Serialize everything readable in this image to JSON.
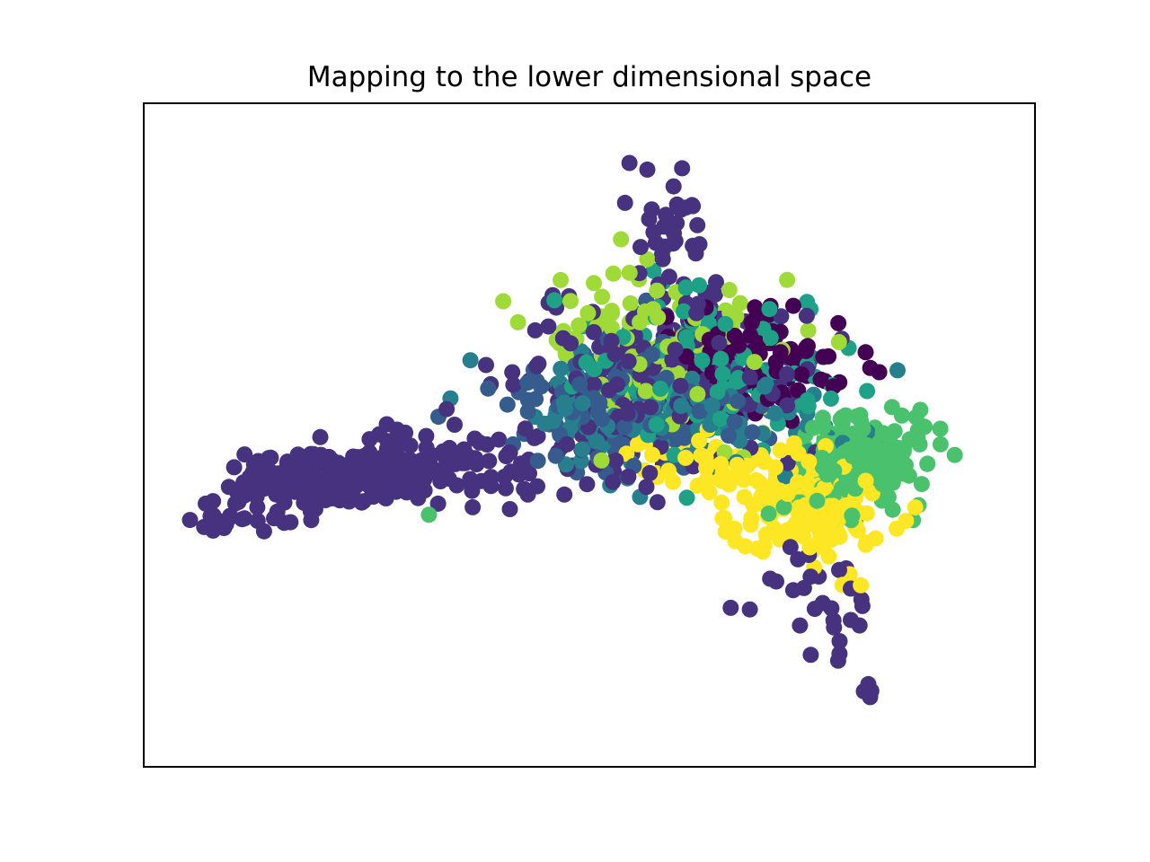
{
  "chart_data": {
    "type": "scatter",
    "title": "Mapping to the lower dimensional space",
    "xlabel": "",
    "ylabel": "",
    "axis_ticks_visible": false,
    "grid": false,
    "legend": "none",
    "marker": "circle",
    "colormap": "viridis",
    "class_colors": [
      "#440154",
      "#46327e",
      "#365c8d",
      "#277f8e",
      "#1fa187",
      "#4ac16d",
      "#a0da39",
      "#fde725"
    ],
    "xlim": [
      0,
      100
    ],
    "ylim": [
      0,
      100
    ],
    "seed": 7,
    "clusters": [
      {
        "class": 1,
        "n": 150,
        "cx": 19,
        "cy": 43,
        "sx": 4.5,
        "sy": 2.2
      },
      {
        "class": 1,
        "n": 150,
        "cx": 31,
        "cy": 45,
        "sx": 7,
        "sy": 2.8
      },
      {
        "class": 1,
        "n": 20,
        "cx": 10,
        "cy": 38,
        "sx": 2.2,
        "sy": 1.6
      },
      {
        "class": 1,
        "n": 220,
        "cx": 58,
        "cy": 58,
        "sx": 8,
        "sy": 7
      },
      {
        "class": 1,
        "n": 30,
        "cx": 59,
        "cy": 79,
        "sx": 2.5,
        "sy": 5
      },
      {
        "class": 1,
        "n": 30,
        "cx": 75,
        "cy": 25,
        "sx": 4,
        "sy": 5
      },
      {
        "class": 1,
        "n": 3,
        "cx": 82,
        "cy": 11,
        "sx": 1.2,
        "sy": 0.8
      },
      {
        "class": 0,
        "n": 90,
        "cx": 69,
        "cy": 61,
        "sx": 5.5,
        "sy": 4
      },
      {
        "class": 2,
        "n": 140,
        "cx": 56,
        "cy": 55,
        "sx": 8,
        "sy": 5
      },
      {
        "class": 3,
        "n": 140,
        "cx": 60,
        "cy": 53,
        "sx": 9,
        "sy": 5
      },
      {
        "class": 4,
        "n": 140,
        "cx": 62,
        "cy": 60,
        "sx": 7,
        "sy": 6
      },
      {
        "class": 5,
        "n": 210,
        "cx": 80,
        "cy": 46,
        "sx": 3.5,
        "sy": 3.2
      },
      {
        "class": 5,
        "n": 5,
        "cx": 88,
        "cy": 50,
        "sx": 2,
        "sy": 1.5
      },
      {
        "class": 6,
        "n": 120,
        "cx": 57,
        "cy": 63,
        "sx": 7,
        "sy": 6
      },
      {
        "class": 7,
        "n": 200,
        "cx": 74,
        "cy": 40,
        "sx": 5,
        "sy": 4
      },
      {
        "class": 7,
        "n": 40,
        "cx": 62,
        "cy": 48,
        "sx": 5,
        "sy": 3
      }
    ],
    "extra_points": [
      {
        "class": 1,
        "x": 9,
        "y": 36
      },
      {
        "class": 1,
        "x": 13.5,
        "y": 35.5
      },
      {
        "class": 1,
        "x": 54.5,
        "y": 91
      },
      {
        "class": 1,
        "x": 56.5,
        "y": 90
      },
      {
        "class": 1,
        "x": 54,
        "y": 85
      },
      {
        "class": 1,
        "x": 57,
        "y": 84
      },
      {
        "class": 1,
        "x": 81.5,
        "y": 10.5
      },
      {
        "class": 5,
        "x": 32,
        "y": 38
      },
      {
        "class": 5,
        "x": 91,
        "y": 47
      },
      {
        "class": 6,
        "x": 42,
        "y": 67
      },
      {
        "class": 6,
        "x": 78,
        "y": 64
      }
    ]
  }
}
